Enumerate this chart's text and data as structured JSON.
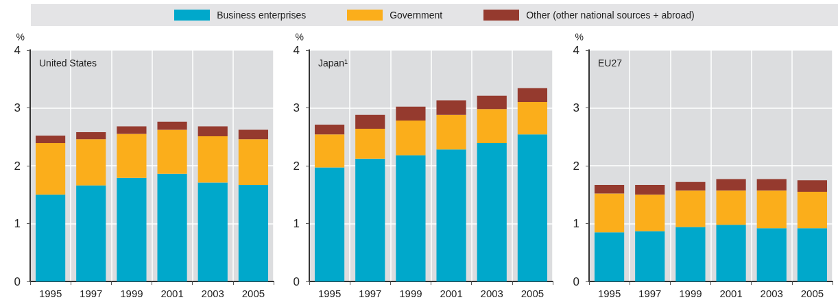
{
  "chart_data": [
    {
      "type": "bar",
      "title": "United States",
      "ylabel": "%",
      "categories": [
        "1995",
        "1997",
        "1999",
        "2001",
        "2003",
        "2005"
      ],
      "stacked": true,
      "ylim": [
        0,
        4
      ],
      "yticks": [
        0,
        1,
        2,
        3,
        4
      ],
      "grid": true,
      "legend": "top",
      "series": [
        {
          "name": "Business enterprises",
          "color": "#00a8cb",
          "values": [
            1.5,
            1.66,
            1.79,
            1.86,
            1.71,
            1.67
          ]
        },
        {
          "name": "Government",
          "color": "#fbae1b",
          "values": [
            0.89,
            0.8,
            0.76,
            0.76,
            0.8,
            0.79
          ]
        },
        {
          "name": "Other (other national sources + abroad)",
          "color": "#953a2e",
          "values": [
            0.13,
            0.12,
            0.13,
            0.14,
            0.17,
            0.16
          ]
        }
      ]
    },
    {
      "type": "bar",
      "title": "Japan¹",
      "ylabel": "%",
      "categories": [
        "1995",
        "1997",
        "1999",
        "2001",
        "2003",
        "2005"
      ],
      "stacked": true,
      "ylim": [
        0,
        4
      ],
      "yticks": [
        0,
        1,
        2,
        3,
        4
      ],
      "grid": true,
      "series": [
        {
          "color": "#00a8cb",
          "values": [
            1.97,
            2.12,
            2.18,
            2.28,
            2.39,
            2.54
          ]
        },
        {
          "color": "#fbae1b",
          "values": [
            0.57,
            0.52,
            0.6,
            0.6,
            0.59,
            0.56
          ]
        },
        {
          "color": "#953a2e",
          "values": [
            0.17,
            0.24,
            0.24,
            0.25,
            0.23,
            0.24
          ]
        }
      ]
    },
    {
      "type": "bar",
      "title": "EU27",
      "ylabel": "%",
      "categories": [
        "1995",
        "1997",
        "1999",
        "2001",
        "2003",
        "2005"
      ],
      "stacked": true,
      "ylim": [
        0,
        4
      ],
      "yticks": [
        0,
        1,
        2,
        3,
        4
      ],
      "grid": true,
      "series": [
        {
          "color": "#00a8cb",
          "values": [
            0.85,
            0.87,
            0.94,
            0.98,
            0.92,
            0.92
          ]
        },
        {
          "color": "#fbae1b",
          "values": [
            0.67,
            0.63,
            0.63,
            0.59,
            0.65,
            0.63
          ]
        },
        {
          "color": "#953a2e",
          "values": [
            0.15,
            0.17,
            0.15,
            0.2,
            0.2,
            0.2
          ]
        }
      ]
    }
  ]
}
